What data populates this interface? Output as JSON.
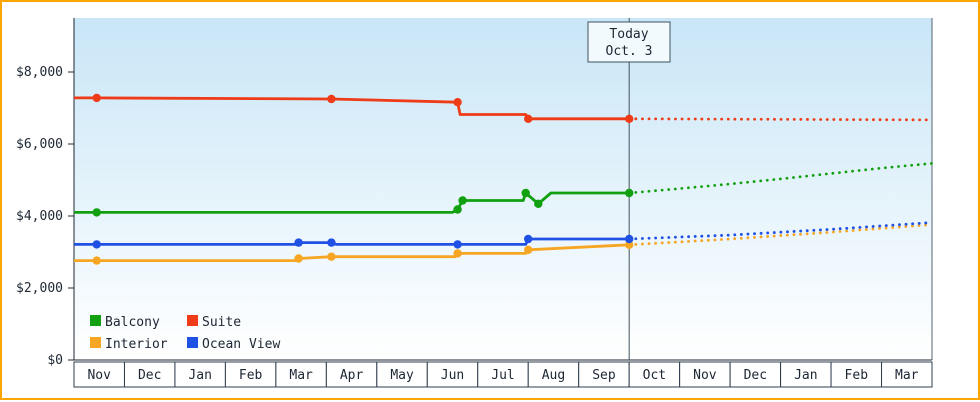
{
  "window": {
    "border_color": "#ffa500",
    "background": "#ffffff"
  },
  "annotation": {
    "line1": "Today",
    "line2": "Oct. 3"
  },
  "chart_data": {
    "type": "line",
    "x_axis": {
      "categories": [
        "Nov",
        "Dec",
        "Jan",
        "Feb",
        "Mar",
        "Apr",
        "May",
        "Jun",
        "Jul",
        "Aug",
        "Sep",
        "Oct",
        "Nov",
        "Dec",
        "Jan",
        "Feb",
        "Mar"
      ]
    },
    "y_axis": {
      "ticks": [
        0,
        2000,
        4000,
        6000,
        8000
      ],
      "tick_labels": [
        "$0",
        "$2,000",
        "$4,000",
        "$6,000",
        "$8,000"
      ],
      "range": [
        0,
        9500
      ],
      "grid": false
    },
    "today_index": 11,
    "legend_position": "bottom-left-inside",
    "series": [
      {
        "name": "Balcony",
        "color": "#10a010",
        "points_solid": [
          [
            0,
            4100,
            0
          ],
          [
            0.45,
            4100,
            1
          ],
          [
            7.5,
            4100,
            0
          ],
          [
            7.6,
            4180,
            1
          ],
          [
            7.7,
            4430,
            1
          ],
          [
            8.9,
            4430,
            0
          ],
          [
            8.95,
            4640,
            1
          ],
          [
            9.2,
            4340,
            1
          ],
          [
            9.45,
            4640,
            0
          ],
          [
            11,
            4640,
            1
          ]
        ],
        "points_forecast": [
          [
            11,
            4640
          ],
          [
            12,
            4760
          ],
          [
            13,
            4890
          ],
          [
            14,
            5030
          ],
          [
            15,
            5180
          ],
          [
            16,
            5330
          ],
          [
            17,
            5460
          ]
        ]
      },
      {
        "name": "Suite",
        "color": "#ef3b17",
        "points_solid": [
          [
            0,
            7280,
            0
          ],
          [
            0.45,
            7280,
            1
          ],
          [
            5.1,
            7250,
            1
          ],
          [
            7.6,
            7160,
            1
          ],
          [
            7.65,
            6820,
            0
          ],
          [
            8.95,
            6820,
            0
          ],
          [
            9.0,
            6700,
            1
          ],
          [
            11,
            6700,
            1
          ]
        ],
        "points_forecast": [
          [
            11,
            6700
          ],
          [
            17,
            6670
          ]
        ]
      },
      {
        "name": "Interior",
        "color": "#f6a623",
        "points_solid": [
          [
            0,
            2760,
            0
          ],
          [
            0.45,
            2760,
            1
          ],
          [
            4.4,
            2760,
            0
          ],
          [
            4.45,
            2820,
            1
          ],
          [
            5.1,
            2870,
            1
          ],
          [
            7.55,
            2870,
            0
          ],
          [
            7.6,
            2960,
            1
          ],
          [
            8.95,
            2960,
            0
          ],
          [
            9.0,
            3060,
            1
          ],
          [
            11,
            3200,
            1
          ]
        ],
        "points_forecast": [
          [
            11,
            3200
          ],
          [
            13,
            3360
          ],
          [
            15,
            3550
          ],
          [
            17,
            3760
          ]
        ]
      },
      {
        "name": "Ocean View",
        "color": "#2051e5",
        "points_solid": [
          [
            0,
            3210,
            0
          ],
          [
            0.45,
            3210,
            1
          ],
          [
            4.4,
            3210,
            0
          ],
          [
            4.45,
            3260,
            1
          ],
          [
            5.1,
            3260,
            1
          ],
          [
            5.2,
            3210,
            0
          ],
          [
            7.6,
            3210,
            1
          ],
          [
            8.95,
            3210,
            0
          ],
          [
            9.0,
            3360,
            1
          ],
          [
            11,
            3360,
            1
          ]
        ],
        "points_forecast": [
          [
            11,
            3360
          ],
          [
            13,
            3470
          ],
          [
            15,
            3630
          ],
          [
            17,
            3820
          ]
        ]
      }
    ]
  }
}
